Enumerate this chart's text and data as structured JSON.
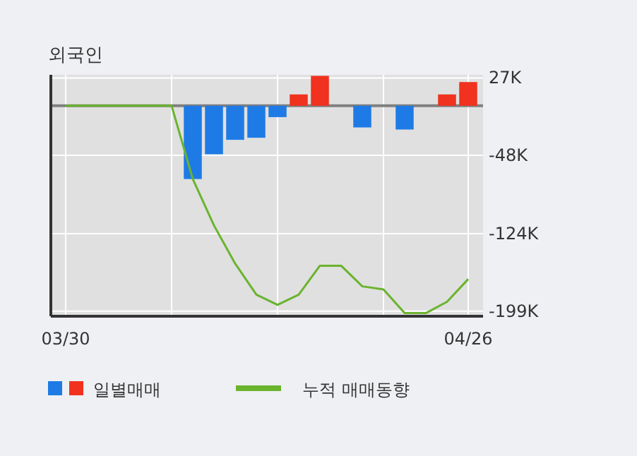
{
  "chart_data": {
    "type": "bar",
    "title": "외국인",
    "categories": [
      "03/30",
      null,
      null,
      null,
      null,
      null,
      null,
      null,
      null,
      null,
      null,
      null,
      null,
      null,
      null,
      null,
      null,
      null,
      null,
      "04/26"
    ],
    "series": [
      {
        "name": "일별매매",
        "colors": [
          "#1e7be6",
          "#1e7be6",
          "#1e7be6",
          "#1e7be6",
          "#1e7be6",
          "#1e7be6",
          "#1e7be6",
          "#1e7be6",
          "#1e7be6",
          "#1e7be6",
          "#1e7be6",
          "#f0321e",
          "#f0321e",
          "#1e7be6",
          "#1e7be6",
          "#1e7be6",
          "#1e7be6",
          "#1e7be6",
          "#f0321e",
          "#f0321e"
        ],
        "values": [
          0,
          0,
          0,
          0,
          0,
          0,
          -71,
          -47,
          -33,
          -31,
          -11,
          11,
          29,
          0,
          -21,
          0,
          -23,
          0,
          11,
          23
        ]
      },
      {
        "name": "누적 매매동향",
        "type": "line",
        "color": "#6ab42d",
        "values": [
          0,
          0,
          0,
          0,
          0,
          0,
          -71,
          -116,
          -153,
          -183,
          -193,
          -183,
          -155,
          -155,
          -175,
          -178,
          -201,
          -201,
          -190,
          -168
        ]
      }
    ],
    "ylim": [
      -204,
      30
    ],
    "yticks": [
      {
        "value": 27,
        "label": "27K"
      },
      {
        "value": -48,
        "label": "-48K"
      },
      {
        "value": -124,
        "label": "-124K"
      },
      {
        "value": -199,
        "label": "-199K"
      }
    ],
    "grid": true,
    "legend": "bottom",
    "marker": "none",
    "line_style": "solid"
  }
}
